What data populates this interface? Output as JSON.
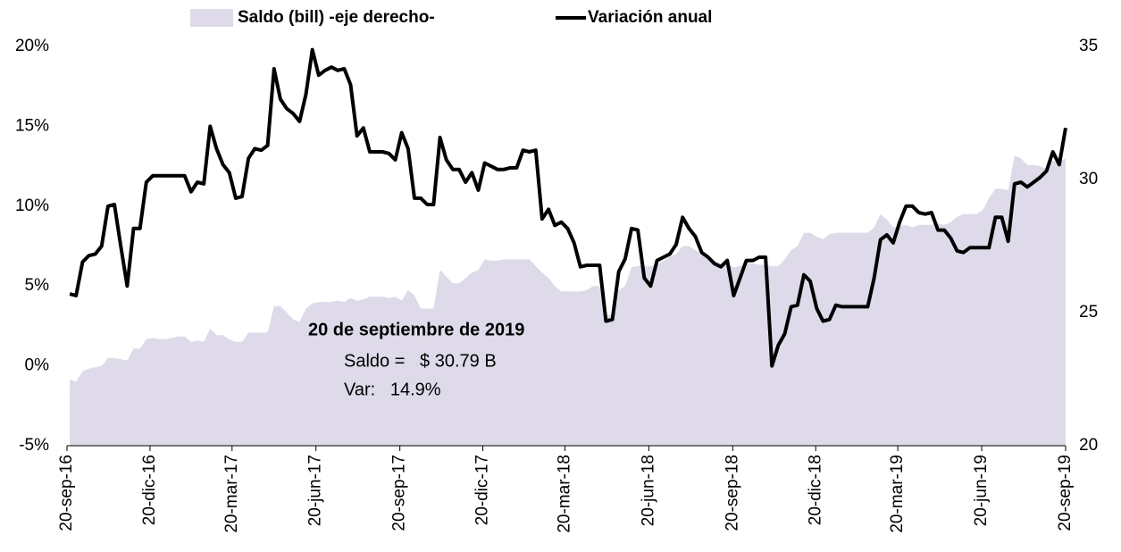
{
  "chart_data": {
    "type": "line",
    "legend": "top",
    "annotations": [
      "20 de septiembre de 2019",
      "Saldo =   $ 30.79 B",
      "Var:   14.9%"
    ],
    "x": [
      "2016-09-23",
      "2016-09-30",
      "2016-10-07",
      "2016-10-14",
      "2016-10-21",
      "2016-10-28",
      "2016-11-04",
      "2016-11-11",
      "2016-11-18",
      "2016-11-25",
      "2016-12-02",
      "2016-12-09",
      "2016-12-16",
      "2016-12-23",
      "2016-12-30",
      "2017-01-06",
      "2017-01-13",
      "2017-01-20",
      "2017-01-27",
      "2017-02-03",
      "2017-02-10",
      "2017-02-17",
      "2017-02-24",
      "2017-03-03",
      "2017-03-10",
      "2017-03-17",
      "2017-03-24",
      "2017-03-31",
      "2017-04-07",
      "2017-04-14",
      "2017-04-21",
      "2017-04-28",
      "2017-05-05",
      "2017-05-12",
      "2017-05-19",
      "2017-05-26",
      "2017-06-02",
      "2017-06-09",
      "2017-06-16",
      "2017-06-23",
      "2017-06-30",
      "2017-07-07",
      "2017-07-14",
      "2017-07-21",
      "2017-07-28",
      "2017-08-04",
      "2017-08-11",
      "2017-08-18",
      "2017-08-25",
      "2017-09-01",
      "2017-09-08",
      "2017-09-15",
      "2017-09-22",
      "2017-09-29",
      "2017-10-06",
      "2017-10-13",
      "2017-10-20",
      "2017-10-27",
      "2017-11-03",
      "2017-11-10",
      "2017-11-17",
      "2017-11-24",
      "2017-12-01",
      "2017-12-08",
      "2017-12-15",
      "2017-12-22",
      "2017-12-29",
      "2018-01-05",
      "2018-01-12",
      "2018-01-19",
      "2018-01-26",
      "2018-02-02",
      "2018-02-09",
      "2018-02-16",
      "2018-02-23",
      "2018-03-02",
      "2018-03-09",
      "2018-03-16",
      "2018-03-23",
      "2018-03-30",
      "2018-04-06",
      "2018-04-13",
      "2018-04-20",
      "2018-04-27",
      "2018-05-04",
      "2018-05-11",
      "2018-05-18",
      "2018-05-25",
      "2018-06-01",
      "2018-06-08",
      "2018-06-15",
      "2018-06-22",
      "2018-06-29",
      "2018-07-06",
      "2018-07-13",
      "2018-07-20",
      "2018-07-27",
      "2018-08-03",
      "2018-08-10",
      "2018-08-17",
      "2018-08-24",
      "2018-08-31",
      "2018-09-07",
      "2018-09-14",
      "2018-09-21",
      "2018-09-28",
      "2018-10-05",
      "2018-10-12",
      "2018-10-19",
      "2018-10-26",
      "2018-11-02",
      "2018-11-09",
      "2018-11-16",
      "2018-11-23",
      "2018-11-30",
      "2018-12-07",
      "2018-12-14",
      "2018-12-21",
      "2018-12-28",
      "2019-01-04",
      "2019-01-11",
      "2019-01-18",
      "2019-01-25",
      "2019-02-01",
      "2019-02-08",
      "2019-02-15",
      "2019-02-22",
      "2019-03-01",
      "2019-03-08",
      "2019-03-15",
      "2019-03-22",
      "2019-03-29",
      "2019-04-05",
      "2019-04-12",
      "2019-04-19",
      "2019-04-26",
      "2019-05-03",
      "2019-05-10",
      "2019-05-17",
      "2019-05-24",
      "2019-05-31",
      "2019-06-07",
      "2019-06-14",
      "2019-06-21",
      "2019-06-28",
      "2019-07-05",
      "2019-07-12",
      "2019-07-19",
      "2019-07-26",
      "2019-08-02",
      "2019-08-09",
      "2019-08-16",
      "2019-08-23",
      "2019-08-30",
      "2019-09-06",
      "2019-09-13",
      "2019-09-20"
    ],
    "series": [
      {
        "name": "Saldo (bill) -eje derecho-",
        "kind": "area",
        "axis": "y2",
        "color": "#dedae9",
        "values": [
          22.5,
          22.4,
          22.8,
          22.9,
          22.95,
          23.0,
          23.3,
          23.3,
          23.25,
          23.2,
          23.65,
          23.65,
          24.0,
          24.05,
          24.0,
          24.0,
          24.05,
          24.1,
          24.1,
          23.9,
          23.95,
          23.9,
          24.4,
          24.15,
          24.15,
          24.0,
          23.9,
          23.9,
          24.25,
          24.25,
          24.25,
          24.25,
          25.25,
          25.25,
          25.0,
          24.75,
          24.65,
          25.15,
          25.35,
          25.4,
          25.4,
          25.4,
          25.45,
          25.4,
          25.55,
          25.45,
          25.5,
          25.6,
          25.6,
          25.6,
          25.55,
          25.6,
          25.45,
          25.85,
          25.65,
          25.15,
          25.15,
          25.15,
          26.6,
          26.35,
          26.1,
          26.1,
          26.3,
          26.5,
          26.6,
          27.0,
          26.95,
          26.95,
          27.0,
          27.0,
          27.0,
          27.0,
          27.0,
          26.75,
          26.5,
          26.3,
          26.0,
          25.8,
          25.8,
          25.8,
          25.8,
          25.85,
          26.0,
          26.0,
          24.85,
          24.95,
          25.85,
          26.0,
          26.7,
          26.75,
          26.75,
          26.75,
          26.8,
          26.95,
          27.1,
          27.2,
          27.5,
          27.5,
          27.35,
          27.2,
          27.0,
          26.95,
          26.85,
          26.85,
          26.7,
          26.75,
          26.85,
          26.85,
          26.8,
          26.8,
          26.75,
          26.75,
          27.0,
          27.35,
          27.5,
          28.0,
          28.0,
          27.85,
          27.75,
          27.95,
          28.0,
          28.0,
          28.0,
          28.0,
          28.0,
          28.0,
          28.2,
          28.7,
          28.5,
          28.2,
          28.25,
          28.3,
          28.2,
          28.3,
          28.3,
          28.3,
          28.35,
          28.3,
          28.4,
          28.6,
          28.7,
          28.7,
          28.7,
          28.85,
          29.3,
          29.65,
          29.65,
          29.6,
          30.9,
          30.8,
          30.55,
          30.55,
          30.5,
          30.4,
          30.7,
          30.65,
          30.79
        ]
      },
      {
        "name": "Variación anual",
        "kind": "line",
        "axis": "y",
        "color": "#000000",
        "values": [
          4.5,
          4.4,
          6.5,
          6.9,
          7.0,
          7.5,
          10.0,
          10.1,
          7.5,
          5.0,
          8.6,
          8.6,
          11.5,
          11.9,
          11.9,
          11.9,
          11.9,
          11.9,
          11.9,
          10.9,
          11.5,
          11.4,
          15.0,
          13.6,
          12.6,
          12.1,
          10.5,
          10.6,
          13.0,
          13.6,
          13.5,
          13.8,
          18.6,
          16.7,
          16.1,
          15.8,
          15.3,
          17.0,
          19.8,
          18.2,
          18.5,
          18.7,
          18.5,
          18.6,
          17.6,
          14.4,
          14.9,
          13.4,
          13.4,
          13.4,
          13.3,
          12.9,
          14.6,
          13.6,
          10.5,
          10.5,
          10.1,
          10.1,
          14.3,
          12.9,
          12.3,
          12.3,
          11.5,
          12.1,
          11.0,
          12.7,
          12.5,
          12.3,
          12.3,
          12.4,
          12.4,
          13.5,
          13.4,
          13.5,
          9.2,
          9.8,
          8.8,
          9.0,
          8.6,
          7.7,
          6.2,
          6.3,
          6.3,
          6.3,
          2.8,
          2.9,
          5.9,
          6.7,
          8.6,
          8.5,
          5.5,
          5.0,
          6.6,
          6.8,
          7.0,
          7.6,
          9.3,
          8.6,
          8.1,
          7.1,
          6.8,
          6.4,
          6.2,
          6.6,
          4.4,
          5.5,
          6.6,
          6.6,
          6.8,
          6.8,
          0.0,
          1.3,
          2.0,
          3.7,
          3.8,
          5.7,
          5.3,
          3.6,
          2.8,
          2.9,
          3.8,
          3.7,
          3.7,
          3.7,
          3.7,
          3.7,
          5.5,
          7.9,
          8.2,
          7.7,
          9.0,
          10.0,
          10.0,
          9.6,
          9.5,
          9.6,
          8.5,
          8.5,
          8.0,
          7.2,
          7.1,
          7.4,
          7.4,
          7.4,
          7.4,
          9.3,
          9.3,
          7.8,
          11.4,
          11.5,
          11.2,
          11.5,
          11.8,
          12.2,
          13.4,
          12.6,
          14.9
        ]
      }
    ],
    "xlim": [
      "2016-09-20",
      "2019-09-20"
    ],
    "xticks": [
      {
        "value": "2016-09-20",
        "label": "20-sep-16"
      },
      {
        "value": "2016-12-20",
        "label": "20-dic-16"
      },
      {
        "value": "2017-03-20",
        "label": "20-mar-17"
      },
      {
        "value": "2017-06-20",
        "label": "20-jun-17"
      },
      {
        "value": "2017-09-20",
        "label": "20-sep-17"
      },
      {
        "value": "2017-12-20",
        "label": "20-dic-17"
      },
      {
        "value": "2018-03-20",
        "label": "20-mar-18"
      },
      {
        "value": "2018-06-20",
        "label": "20-jun-18"
      },
      {
        "value": "2018-09-20",
        "label": "20-sep-18"
      },
      {
        "value": "2018-12-20",
        "label": "20-dic-18"
      },
      {
        "value": "2019-03-20",
        "label": "20-mar-19"
      },
      {
        "value": "2019-06-20",
        "label": "20-jun-19"
      },
      {
        "value": "2019-09-20",
        "label": "20-sep-19"
      }
    ],
    "ylim": [
      -5,
      20
    ],
    "yticks": [
      {
        "value": -5,
        "label": "-5%"
      },
      {
        "value": 0,
        "label": "0%"
      },
      {
        "value": 5,
        "label": "5%"
      },
      {
        "value": 10,
        "label": "10%"
      },
      {
        "value": 15,
        "label": "15%"
      },
      {
        "value": 20,
        "label": "20%"
      }
    ],
    "y2lim": [
      20,
      35
    ],
    "y2ticks": [
      20,
      25,
      30,
      35
    ]
  }
}
